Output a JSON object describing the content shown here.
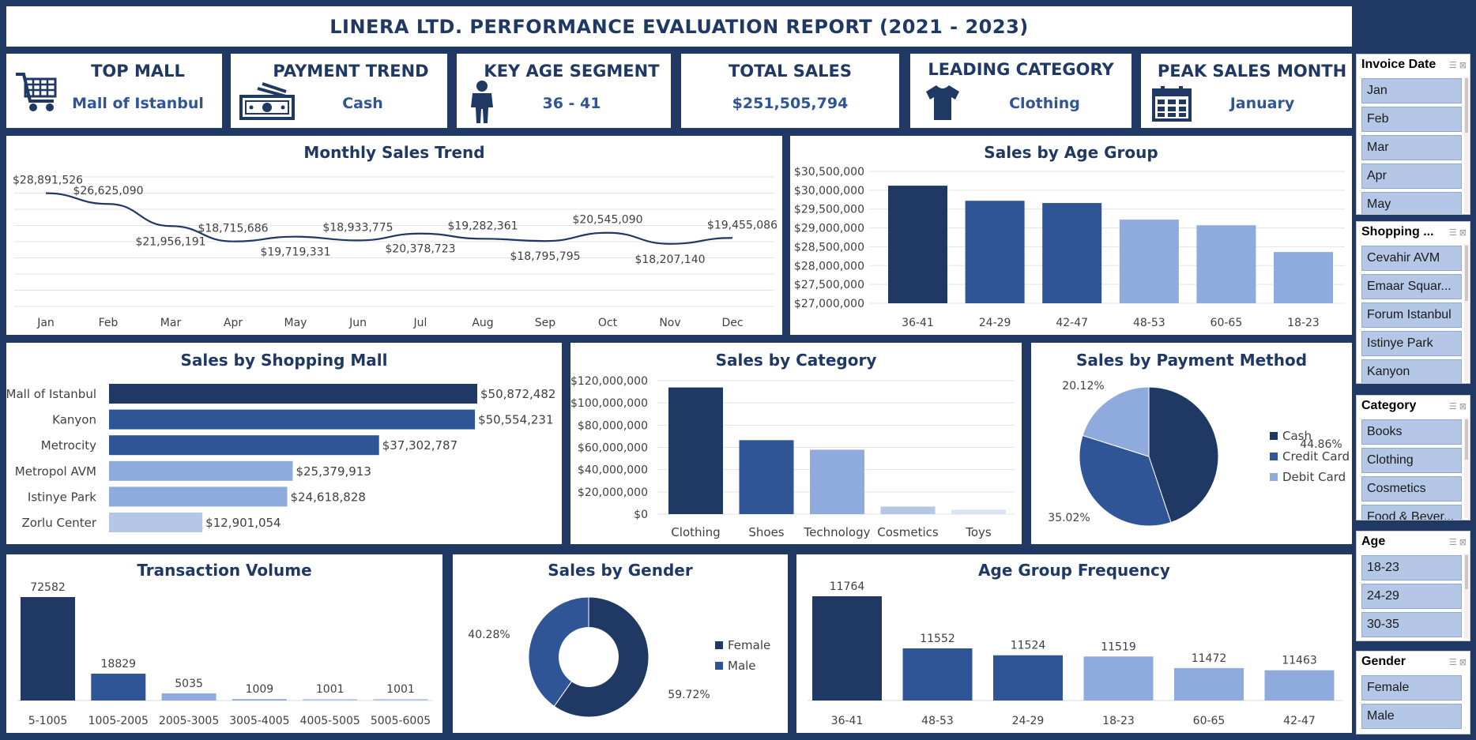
{
  "report_title": "LINERA LTD. PERFORMANCE EVALUATION REPORT (2021 - 2023)",
  "colors": {
    "background": "#1f3864",
    "navy": "#203864",
    "dark_blue": "#2f5597",
    "light_blue": "#8faadc",
    "pale_blue": "#b4c7e7",
    "paler_blue": "#dae3f3",
    "text": "#1f3864"
  },
  "kpis": [
    {
      "id": "top-mall",
      "title": "TOP MALL",
      "value": "Mall of Istanbul",
      "icon": "shopping-cart-icon"
    },
    {
      "id": "payment-trend",
      "title": "PAYMENT TREND",
      "value": "Cash",
      "icon": "cash-icon"
    },
    {
      "id": "key-age-segment",
      "title": "KEY AGE SEGMENT",
      "value": "36 - 41",
      "icon": "person-icon"
    },
    {
      "id": "total-sales",
      "title": "TOTAL SALES",
      "value": "$251,505,794",
      "icon": ""
    },
    {
      "id": "leading-category",
      "title": "LEADING CATEGORY",
      "value": "Clothing",
      "icon": "tshirt-icon"
    },
    {
      "id": "peak-sales-month",
      "title": "PEAK SALES MONTH",
      "value": "January",
      "icon": "calendar-icon"
    }
  ],
  "charts": {
    "monthly": {
      "title": "Monthly Sales Trend"
    },
    "age_group": {
      "title": "Sales by Age Group"
    },
    "mall": {
      "title": "Sales by Shopping Mall"
    },
    "category": {
      "title": "Sales by Category"
    },
    "payment": {
      "title": "Sales by Payment Method"
    },
    "transactions": {
      "title": "Transaction Volume"
    },
    "gender": {
      "title": "Sales by Gender"
    },
    "age_freq": {
      "title": "Age Group Frequency"
    }
  },
  "chart_data": [
    {
      "id": "monthly",
      "type": "line",
      "title": "Monthly Sales Trend",
      "categories": [
        "Jan",
        "Feb",
        "Mar",
        "Apr",
        "May",
        "Jun",
        "Jul",
        "Aug",
        "Sep",
        "Oct",
        "Nov",
        "Dec"
      ],
      "values": [
        28891526,
        26625090,
        21956191,
        18715686,
        19719331,
        18933775,
        20378723,
        19282361,
        18795795,
        20545090,
        18207140,
        19455086
      ],
      "data_labels": [
        "$28,891,526",
        "$26,625,090",
        "$21,956,191",
        "$18,715,686",
        "$19,719,331",
        "$18,933,775",
        "$20,378,723",
        "$19,282,361",
        "$18,795,795",
        "$20,545,090",
        "$18,207,140",
        "$19,455,086"
      ],
      "grid": true
    },
    {
      "id": "age_group",
      "type": "bar",
      "title": "Sales by Age Group",
      "categories": [
        "36-41",
        "24-29",
        "42-47",
        "48-53",
        "60-65",
        "18-23"
      ],
      "values": [
        30120000,
        29720000,
        29660000,
        29220000,
        29070000,
        28360000
      ],
      "ylim": [
        27000000,
        30500000
      ],
      "yticks": [
        "$27,000,000",
        "$27,500,000",
        "$28,000,000",
        "$28,500,000",
        "$29,000,000",
        "$29,500,000",
        "$30,000,000",
        "$30,500,000"
      ],
      "grid": true
    },
    {
      "id": "mall",
      "type": "bar",
      "orientation": "horizontal",
      "title": "Sales by Shopping Mall",
      "categories": [
        "Mall of Istanbul",
        "Kanyon",
        "Metrocity",
        "Metropol AVM",
        "Istinye Park",
        "Zorlu Center"
      ],
      "values": [
        50872482,
        50554231,
        37302787,
        25379913,
        24618828,
        12901054
      ],
      "data_labels": [
        "$50,872,482",
        "$50,554,231",
        "$37,302,787",
        "$25,379,913",
        "$24,618,828",
        "$12,901,054"
      ]
    },
    {
      "id": "category",
      "type": "bar",
      "title": "Sales by Category",
      "categories": [
        "Clothing",
        "Shoes",
        "Technology",
        "Cosmetics",
        "Toys"
      ],
      "values": [
        113900000,
        66500000,
        57900000,
        6800000,
        3900000
      ],
      "ylim": [
        0,
        120000000
      ],
      "yticks": [
        "$0",
        "$20,000,000",
        "$40,000,000",
        "$60,000,000",
        "$80,000,000",
        "$100,000,000",
        "$120,000,000"
      ],
      "grid": true
    },
    {
      "id": "payment",
      "type": "pie",
      "title": "Sales by Payment Method",
      "labels": [
        "Cash",
        "Credit Card",
        "Debit Card"
      ],
      "values": [
        44.86,
        35.02,
        20.12
      ],
      "data_labels": [
        "44.86%",
        "35.02%",
        "20.12%"
      ],
      "legend": "right"
    },
    {
      "id": "transactions",
      "type": "bar",
      "title": "Transaction Volume",
      "categories": [
        "5-1005",
        "1005-2005",
        "2005-3005",
        "3005-4005",
        "4005-5005",
        "5005-6005"
      ],
      "values": [
        72582,
        18829,
        5035,
        1009,
        1001,
        1001
      ],
      "data_labels": [
        "72582",
        "18829",
        "5035",
        "1009",
        "1001",
        "1001"
      ]
    },
    {
      "id": "gender",
      "type": "pie",
      "donut": true,
      "title": "Sales by Gender",
      "labels": [
        "Female",
        "Male"
      ],
      "values": [
        59.72,
        40.28
      ],
      "data_labels": [
        "59.72%",
        "40.28%"
      ],
      "legend": "right"
    },
    {
      "id": "age_freq",
      "type": "bar",
      "title": "Age Group Frequency",
      "categories": [
        "36-41",
        "48-53",
        "24-29",
        "18-23",
        "60-65",
        "42-47"
      ],
      "values": [
        11764,
        11552,
        11524,
        11519,
        11472,
        11463
      ],
      "data_labels": [
        "11764",
        "11552",
        "11524",
        "11519",
        "11472",
        "11463"
      ],
      "ylim": [
        11340,
        11764
      ]
    }
  ],
  "slicers": [
    {
      "title": "Invoice Date",
      "items": [
        "Jan",
        "Feb",
        "Mar",
        "Apr",
        "May"
      ]
    },
    {
      "title": "Shopping ...",
      "items": [
        "Cevahir AVM",
        "Emaar Squar...",
        "Forum Istanbul",
        "Istinye Park",
        "Kanyon"
      ]
    },
    {
      "title": "Category",
      "items": [
        "Books",
        "Clothing",
        "Cosmetics",
        "Food & Bever..."
      ]
    },
    {
      "title": "Age",
      "items": [
        "18-23",
        "24-29",
        "30-35"
      ]
    },
    {
      "title": "Gender",
      "items": [
        "Female",
        "Male"
      ]
    }
  ]
}
